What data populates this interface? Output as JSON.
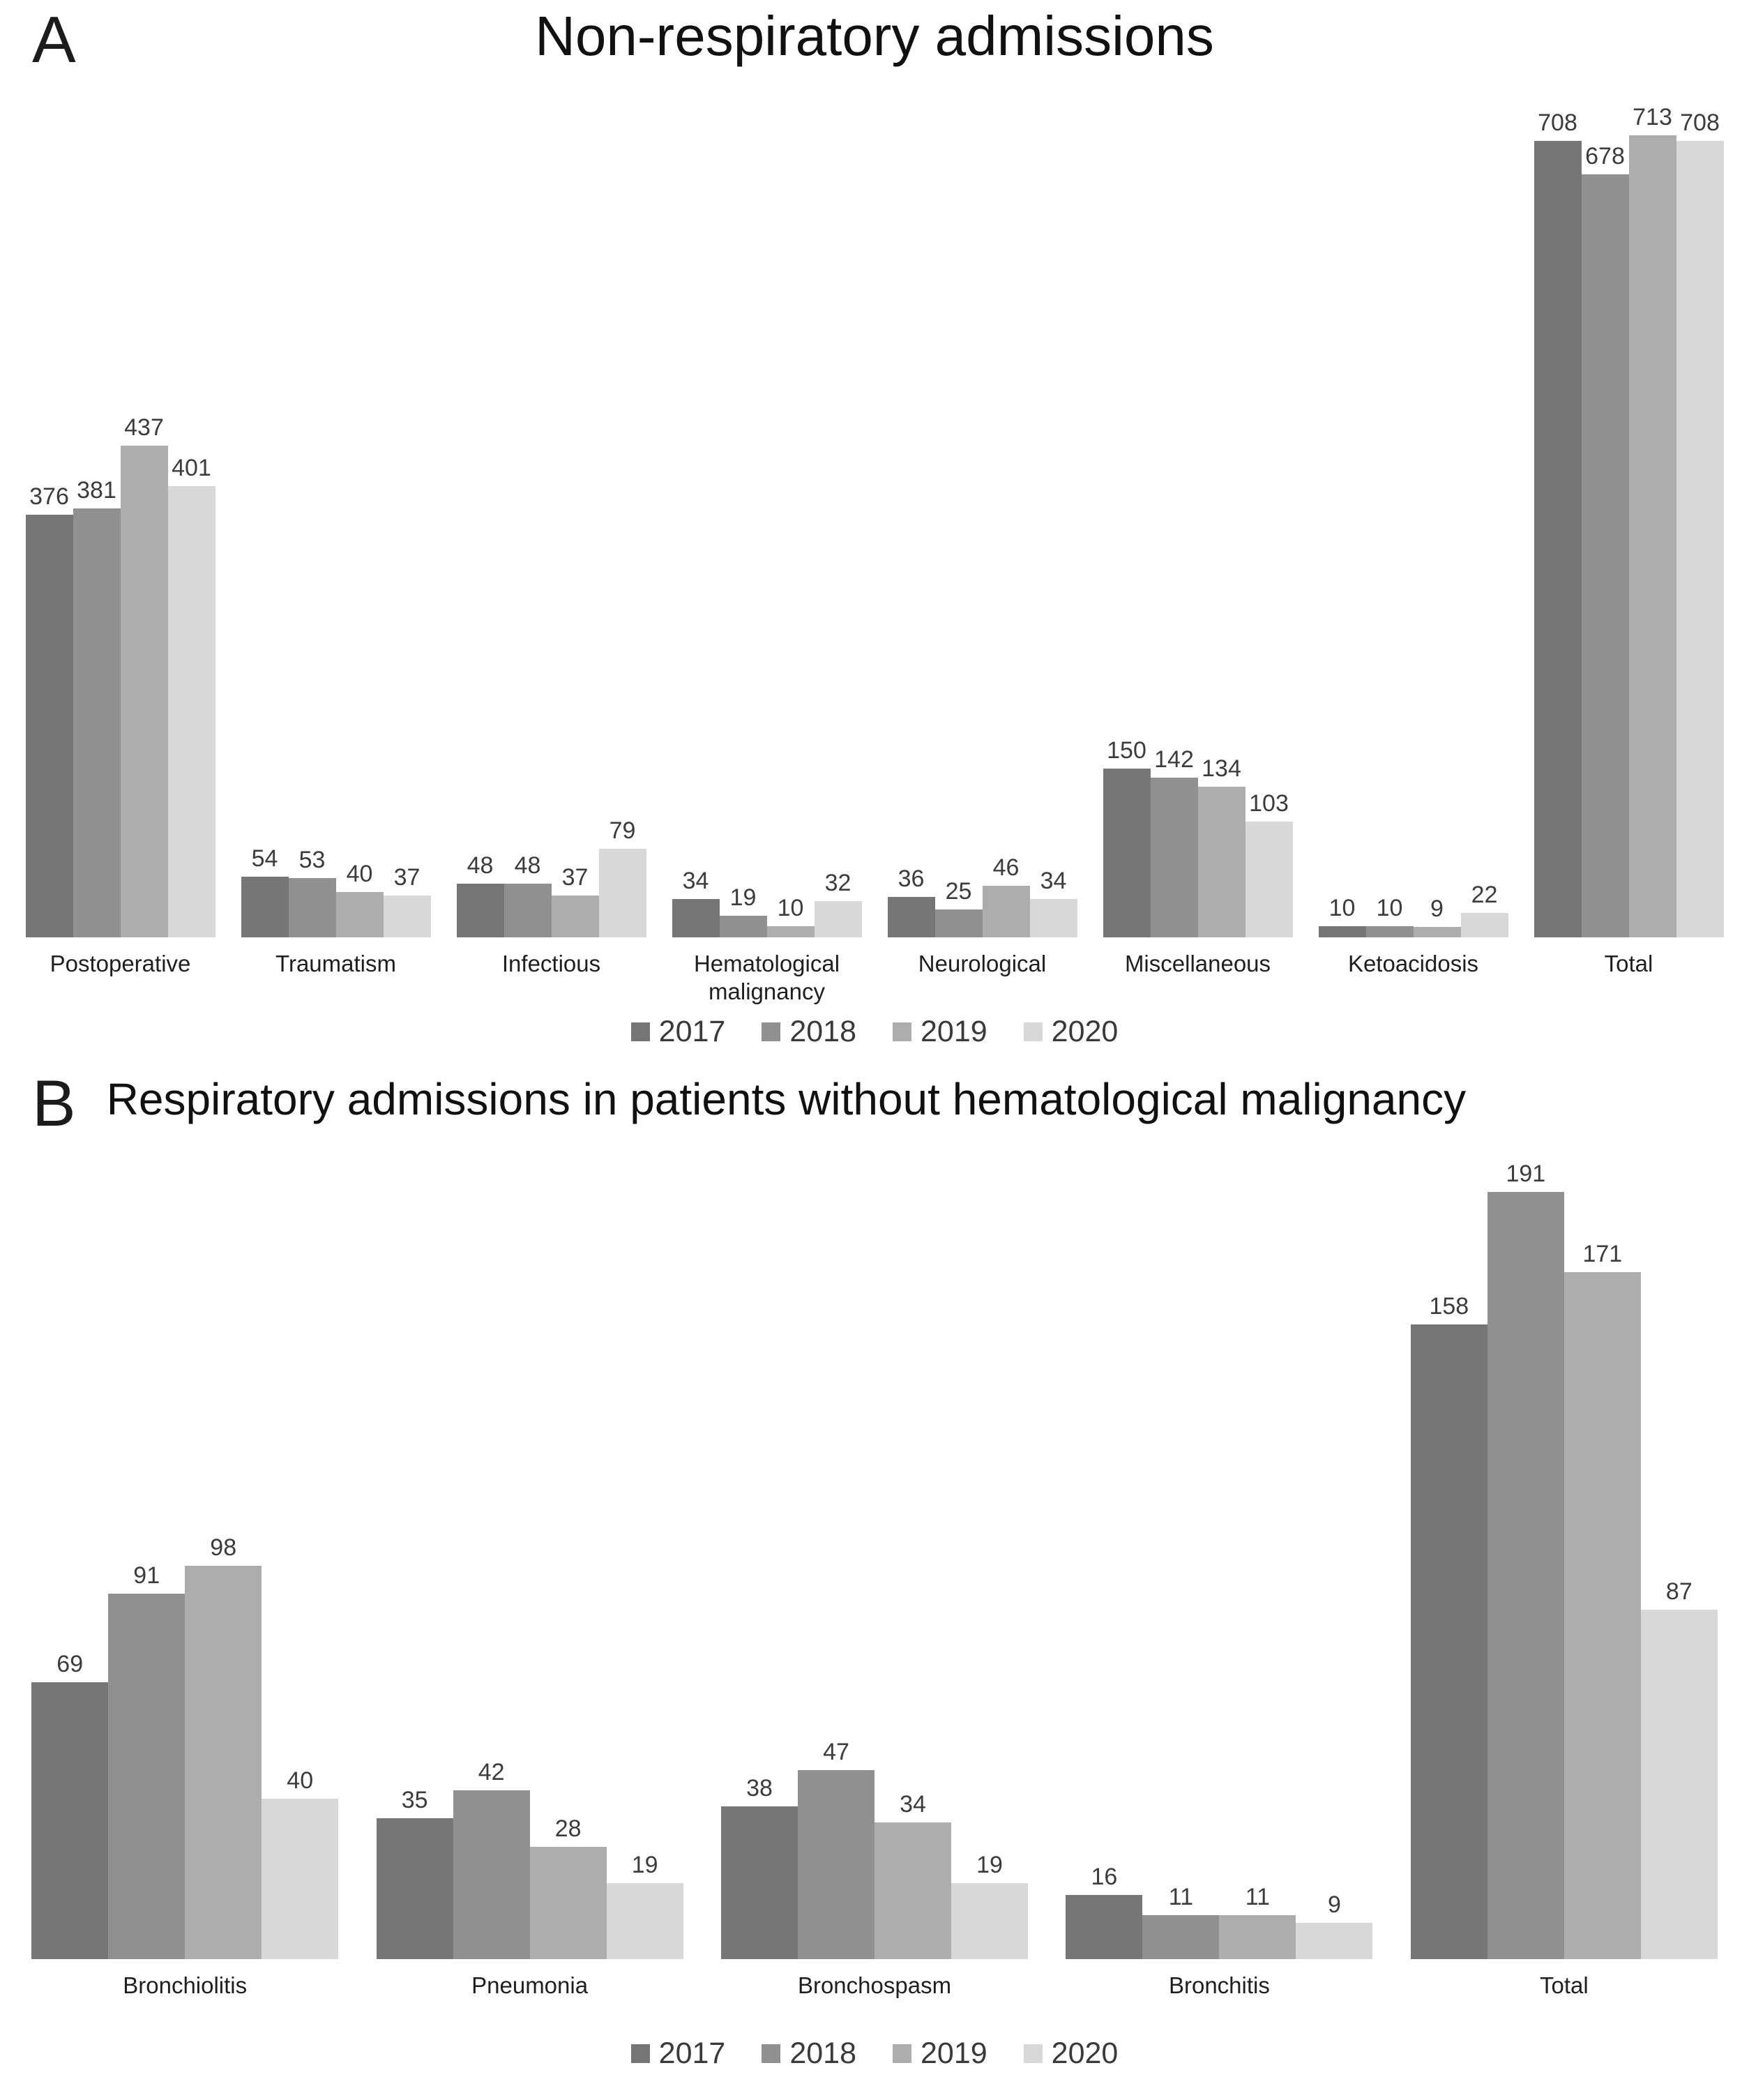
{
  "colors": [
    "#767676",
    "#909090",
    "#adadad",
    "#d8d8d8"
  ],
  "legend": {
    "entries": [
      "2017",
      "2018",
      "2019",
      "2020"
    ]
  },
  "chart_data": [
    {
      "type": "bar",
      "panel_label": "A",
      "title": "Non-respiratory admissions",
      "categories": [
        "Postoperative",
        "Traumatism",
        "Infectious",
        "Hematological malignancy",
        "Neurological",
        "Miscellaneous",
        "Ketoacidosis",
        "Total"
      ],
      "series": [
        {
          "name": "2017",
          "values": [
            376,
            54,
            48,
            34,
            36,
            150,
            10,
            708
          ]
        },
        {
          "name": "2018",
          "values": [
            381,
            53,
            48,
            19,
            25,
            142,
            10,
            678
          ]
        },
        {
          "name": "2019",
          "values": [
            437,
            40,
            37,
            10,
            46,
            134,
            9,
            713
          ]
        },
        {
          "name": "2020",
          "values": [
            401,
            37,
            79,
            32,
            34,
            103,
            22,
            708
          ]
        }
      ],
      "ylim": [
        0,
        713
      ],
      "data_labels": true,
      "grid": false,
      "axes_visible": false,
      "legend_position": "bottom"
    },
    {
      "type": "bar",
      "panel_label": "B",
      "title": "Respiratory admissions in patients without hematological malignancy",
      "categories": [
        "Bronchiolitis",
        "Pneumonia",
        "Bronchospasm",
        "Bronchitis",
        "Total"
      ],
      "series": [
        {
          "name": "2017",
          "values": [
            69,
            35,
            38,
            16,
            158
          ]
        },
        {
          "name": "2018",
          "values": [
            91,
            42,
            47,
            11,
            191
          ]
        },
        {
          "name": "2019",
          "values": [
            98,
            28,
            34,
            11,
            171
          ]
        },
        {
          "name": "2020",
          "values": [
            40,
            19,
            19,
            9,
            87
          ]
        }
      ],
      "ylim": [
        0,
        191
      ],
      "data_labels": true,
      "grid": false,
      "axes_visible": false,
      "legend_position": "bottom"
    }
  ]
}
